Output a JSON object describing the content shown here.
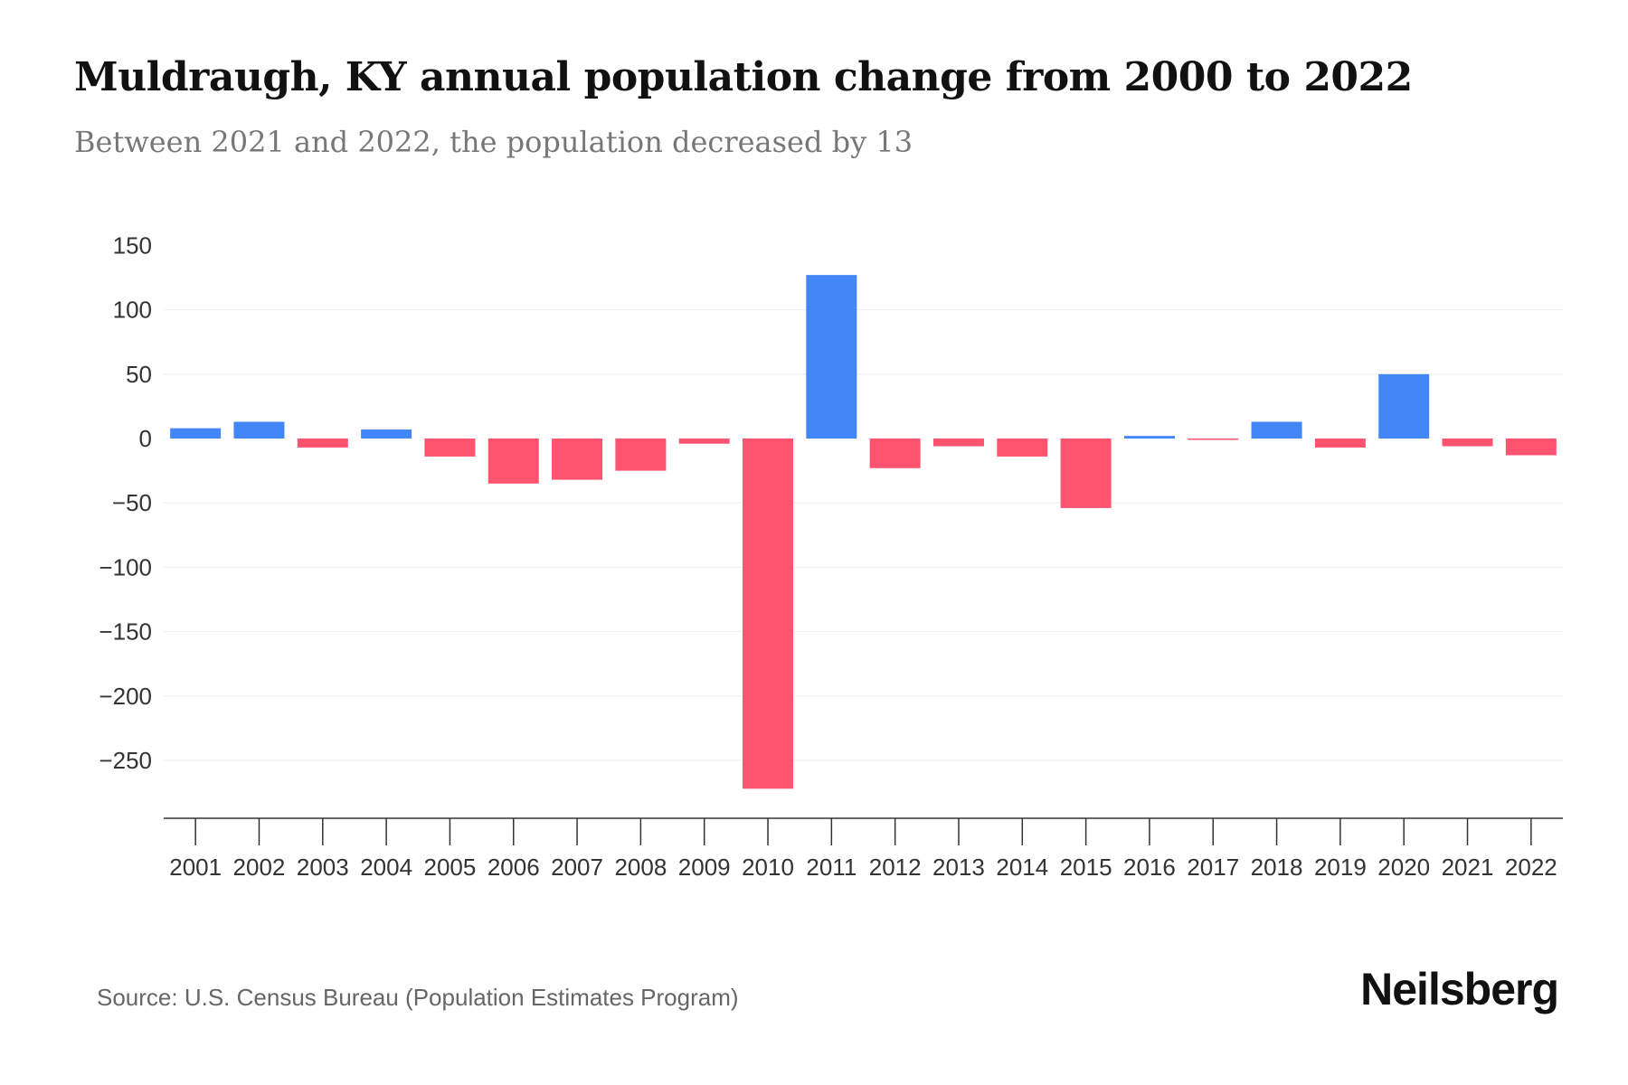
{
  "chart_data": {
    "type": "bar",
    "title": "Muldraugh, KY annual population change from 2000 to 2022",
    "subtitle": "Between 2021 and 2022, the population decreased by 13",
    "categories": [
      "2001",
      "2002",
      "2003",
      "2004",
      "2005",
      "2006",
      "2007",
      "2008",
      "2009",
      "2010",
      "2011",
      "2012",
      "2013",
      "2014",
      "2015",
      "2016",
      "2017",
      "2018",
      "2019",
      "2020",
      "2021",
      "2022"
    ],
    "values": [
      8,
      13,
      -7,
      7,
      -14,
      -35,
      -32,
      -25,
      -4,
      -272,
      127,
      -23,
      -6,
      -14,
      -54,
      2,
      -1,
      13,
      -7,
      50,
      -6,
      -13
    ],
    "yticks": [
      150,
      100,
      50,
      0,
      -50,
      -100,
      -150,
      -200,
      -250
    ],
    "ytick_labels": [
      "150",
      "100",
      "50",
      "0",
      "−50",
      "−100",
      "−150",
      "−200",
      "−250"
    ],
    "ylim": [
      -295,
      150
    ],
    "xlabel": "",
    "ylabel": "",
    "grid": true,
    "colors": {
      "positive": "#4287f5",
      "negative": "#ff5470"
    }
  },
  "footer": {
    "source": "Source: U.S. Census Bureau (Population Estimates Program)",
    "logo": "Neilsberg"
  }
}
